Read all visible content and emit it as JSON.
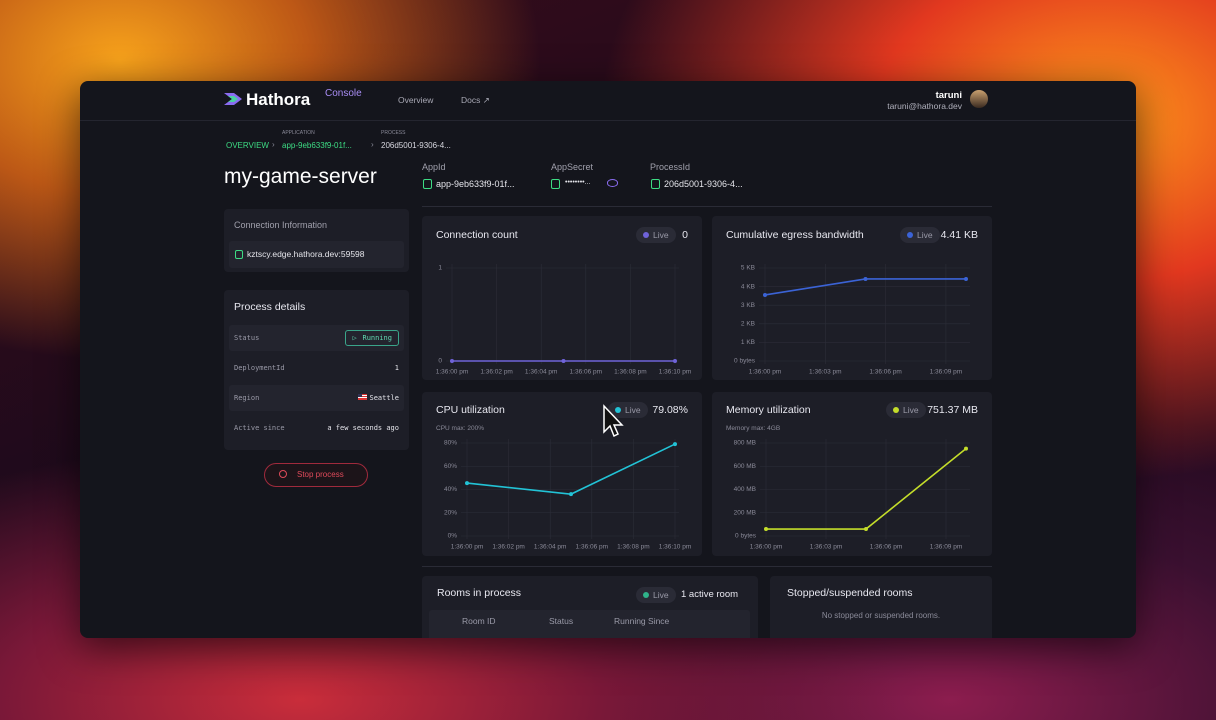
{
  "nav": {
    "brand": "Hathora",
    "product": "Console",
    "links": [
      "Overview",
      "Docs ↗"
    ],
    "user": {
      "name": "taruni",
      "email": "taruni@hathora.dev"
    }
  },
  "breadcrumb": {
    "root": "OVERVIEW",
    "application_label": "APPLICATION",
    "application": "app-9eb633f9-01f...",
    "process_label": "PROCESS",
    "process": "206d5001-9306-4..."
  },
  "title": "my-game-server",
  "ids": [
    {
      "label": "AppId",
      "value": "app-9eb633f9-01f..."
    },
    {
      "label": "AppSecret",
      "value": "••••••••..."
    },
    {
      "label": "ProcessId",
      "value": "206d5001-9306-4..."
    }
  ],
  "connection": {
    "title": "Connection Information",
    "host": "kztscy.edge.hathora.dev:59598"
  },
  "process_details": {
    "title": "Process details",
    "rows": [
      [
        "Status",
        "Running"
      ],
      [
        "DeploymentId",
        "1"
      ],
      [
        "Region",
        "Seattle"
      ],
      [
        "Active since",
        "a few seconds ago"
      ]
    ]
  },
  "stop_button": "Stop process",
  "chart_data": [
    {
      "type": "line",
      "title": "Connection count",
      "live": "Live",
      "current": "0",
      "color": "#6f63d9",
      "grid": true,
      "xlim": [
        0,
        10
      ],
      "xticks": [
        {
          "value": 0,
          "label": "1:36:00 pm"
        },
        {
          "value": 2,
          "label": "1:36:02 pm"
        },
        {
          "value": 4,
          "label": "1:36:04 pm"
        },
        {
          "value": 6,
          "label": "1:36:06 pm"
        },
        {
          "value": 8,
          "label": "1:36:08 pm"
        },
        {
          "value": 10,
          "label": "1:36:10 pm"
        }
      ],
      "ylim": [
        0,
        1
      ],
      "yticks": [
        0,
        1
      ],
      "x": [
        0,
        5,
        10
      ],
      "values": [
        0,
        0,
        0
      ]
    },
    {
      "type": "line",
      "title": "Cumulative egress bandwidth",
      "live": "Live",
      "current": "4.41 KB",
      "color": "#3b63d6",
      "grid": true,
      "xlim": [
        0,
        10
      ],
      "xticks": [
        {
          "value": 0,
          "label": "1:36:00 pm"
        },
        {
          "value": 3,
          "label": "1:36:03 pm"
        },
        {
          "value": 6,
          "label": "1:36:06 pm"
        },
        {
          "value": 9,
          "label": "1:36:09 pm"
        }
      ],
      "ylim": [
        0,
        5
      ],
      "yticks": [
        {
          "value": 0,
          "label": "0 bytes"
        },
        {
          "value": 1,
          "label": "1 KB"
        },
        {
          "value": 2,
          "label": "2 KB"
        },
        {
          "value": 3,
          "label": "3 KB"
        },
        {
          "value": 4,
          "label": "4 KB"
        },
        {
          "value": 5,
          "label": "5 KB"
        }
      ],
      "x": [
        0,
        5,
        10
      ],
      "values": [
        3.55,
        4.41,
        4.41
      ]
    },
    {
      "type": "line",
      "title": "CPU utilization",
      "subtitle": "CPU max: 200%",
      "live": "Live",
      "current": "79.08%",
      "color": "#22c3d6",
      "grid": true,
      "xlim": [
        0,
        10
      ],
      "xticks": [
        {
          "value": 0,
          "label": "1:36:00 pm"
        },
        {
          "value": 2,
          "label": "1:36:02 pm"
        },
        {
          "value": 4,
          "label": "1:36:04 pm"
        },
        {
          "value": 6,
          "label": "1:36:06 pm"
        },
        {
          "value": 8,
          "label": "1:36:08 pm"
        },
        {
          "value": 10,
          "label": "1:36:10 pm"
        }
      ],
      "ylim": [
        0,
        80
      ],
      "yticks": [
        {
          "value": 0,
          "label": "0%"
        },
        {
          "value": 20,
          "label": "20%"
        },
        {
          "value": 40,
          "label": "40%"
        },
        {
          "value": 60,
          "label": "60%"
        },
        {
          "value": 80,
          "label": "80%"
        }
      ],
      "x": [
        0,
        5,
        10
      ],
      "values": [
        45.5,
        36,
        79.08
      ]
    },
    {
      "type": "line",
      "title": "Memory utilization",
      "subtitle": "Memory max: 4GB",
      "live": "Live",
      "current": "751.37 MB",
      "color": "#c4dd2a",
      "grid": true,
      "xlim": [
        0,
        10
      ],
      "xticks": [
        {
          "value": 0,
          "label": "1:36:00 pm"
        },
        {
          "value": 3,
          "label": "1:36:03 pm"
        },
        {
          "value": 6,
          "label": "1:36:06 pm"
        },
        {
          "value": 9,
          "label": "1:36:09 pm"
        }
      ],
      "ylim": [
        0,
        800
      ],
      "yticks": [
        {
          "value": 0,
          "label": "0 bytes"
        },
        {
          "value": 200,
          "label": "200 MB"
        },
        {
          "value": 400,
          "label": "400 MB"
        },
        {
          "value": 600,
          "label": "600 MB"
        },
        {
          "value": 800,
          "label": "800 MB"
        }
      ],
      "x": [
        0,
        5,
        10
      ],
      "values": [
        60,
        60,
        751.37
      ]
    }
  ],
  "rooms": {
    "title": "Rooms in process",
    "live": "Live",
    "count": "1 active room",
    "columns": [
      "Room ID",
      "Status",
      "Running Since"
    ]
  },
  "stopped_rooms": {
    "title": "Stopped/suspended rooms",
    "empty": "No stopped or suspended rooms."
  }
}
